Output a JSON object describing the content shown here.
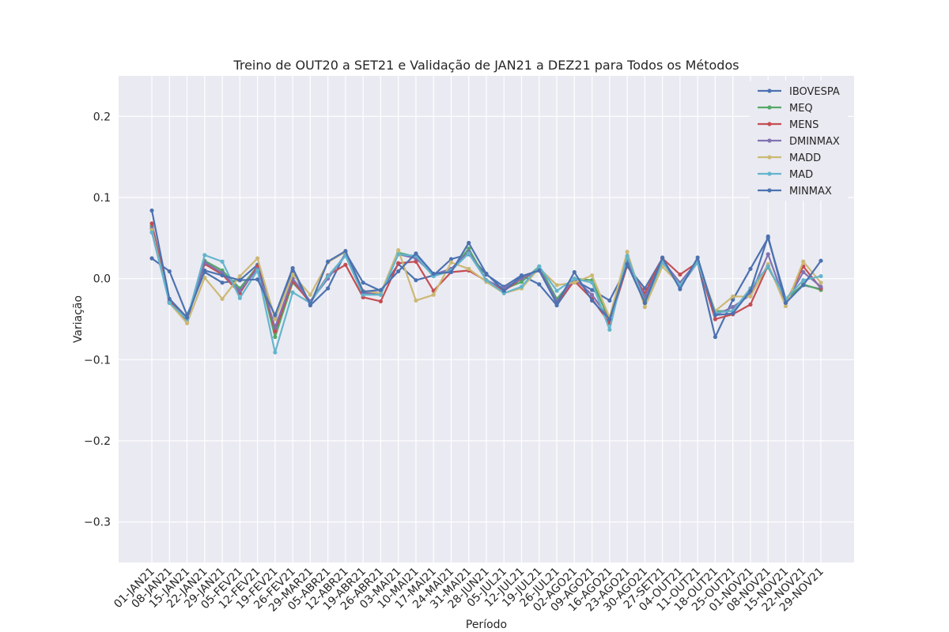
{
  "chart_data": {
    "type": "line",
    "title": "Treino de OUT20 a SET21 e Validação de JAN21 a DEZ21 para Todos os Métodos",
    "xlabel": "Período",
    "ylabel": "Variação",
    "ylim": [
      -0.35,
      0.25
    ],
    "yticks": [
      0.2,
      0.1,
      0.0,
      -0.1,
      -0.2,
      -0.3
    ],
    "ytick_labels": [
      "0.2",
      "0.1",
      "0.0",
      "−0.1",
      "−0.2",
      "−0.3"
    ],
    "grid": true,
    "legend_position": "top-right",
    "categories": [
      "01-JAN21",
      "08-JAN21",
      "15-JAN21",
      "22-JAN21",
      "29-JAN21",
      "05-FEV21",
      "12-FEV21",
      "19-FEV21",
      "26-FEV21",
      "29-MAR21",
      "05-ABR21",
      "12-ABR21",
      "19-ABR21",
      "26-ABR21",
      "03-MAI21",
      "10-MAI21",
      "17-MAI21",
      "24-MAI21",
      "31-MAI21",
      "28-JUN21",
      "05-JUL21",
      "12-JUL21",
      "19-JUL21",
      "26-JUL21",
      "02-AGO21",
      "09-AGO21",
      "16-AGO21",
      "23-AGO21",
      "30-AGO21",
      "27-SET21",
      "04-OUT21",
      "11-OUT21",
      "18-OUT21",
      "25-OUT21",
      "01-NOV21",
      "08-NOV21",
      "15-NOV21",
      "22-NOV21",
      "29-NOV21"
    ],
    "series": [
      {
        "name": "IBOVESPA",
        "color": "#4c72b0",
        "values": [
          0.025,
          0.009,
          -0.045,
          0.008,
          -0.005,
          -0.002,
          0.017,
          -0.048,
          0.01,
          -0.033,
          -0.012,
          0.032,
          -0.005,
          -0.015,
          0.018,
          -0.002,
          0.004,
          0.024,
          0.03,
          0.005,
          -0.01,
          0.004,
          -0.007,
          -0.033,
          -0.002,
          -0.014,
          -0.027,
          0.015,
          -0.012,
          0.025,
          -0.01,
          0.02,
          -0.072,
          -0.026,
          0.012,
          0.05,
          -0.025,
          -0.008,
          -0.013
        ]
      },
      {
        "name": "MEQ",
        "color": "#55a868",
        "values": [
          0.065,
          -0.028,
          -0.05,
          0.022,
          0.01,
          -0.012,
          0.015,
          -0.072,
          -0.005,
          -0.028,
          0.003,
          0.028,
          -0.018,
          -0.02,
          0.032,
          0.027,
          0.003,
          0.01,
          0.037,
          -0.002,
          -0.013,
          -0.004,
          0.015,
          -0.025,
          0.0,
          -0.002,
          -0.052,
          0.025,
          -0.025,
          0.02,
          -0.005,
          0.02,
          -0.04,
          -0.04,
          -0.012,
          0.014,
          -0.026,
          -0.007,
          -0.014
        ]
      },
      {
        "name": "MENS",
        "color": "#c44e52",
        "values": [
          0.068,
          -0.028,
          -0.05,
          0.018,
          0.005,
          -0.018,
          0.015,
          -0.065,
          -0.003,
          -0.03,
          0.004,
          0.017,
          -0.023,
          -0.028,
          0.019,
          0.021,
          -0.015,
          0.008,
          0.01,
          -0.003,
          -0.015,
          0.0,
          0.01,
          -0.03,
          -0.003,
          -0.025,
          -0.055,
          0.016,
          -0.018,
          0.025,
          0.005,
          0.02,
          -0.05,
          -0.044,
          -0.032,
          0.016,
          -0.03,
          0.015,
          -0.012
        ]
      },
      {
        "name": "DMINMAX",
        "color": "#8172b2",
        "values": [
          0.062,
          -0.03,
          -0.052,
          0.02,
          0.007,
          -0.015,
          0.012,
          -0.06,
          0.0,
          -0.028,
          0.0,
          0.03,
          -0.018,
          -0.018,
          0.03,
          0.025,
          0.005,
          0.012,
          0.033,
          -0.002,
          -0.012,
          0.0,
          0.012,
          -0.028,
          0.0,
          -0.02,
          -0.05,
          0.02,
          -0.022,
          0.022,
          -0.005,
          0.022,
          -0.045,
          -0.035,
          -0.02,
          0.03,
          -0.03,
          0.008,
          -0.01
        ]
      },
      {
        "name": "MADD",
        "color": "#ccb974",
        "values": [
          0.06,
          -0.03,
          -0.055,
          0.001,
          -0.025,
          0.003,
          0.025,
          -0.05,
          0.005,
          -0.02,
          0.02,
          0.033,
          -0.015,
          -0.018,
          0.035,
          -0.027,
          -0.02,
          0.02,
          0.012,
          -0.004,
          -0.018,
          -0.012,
          0.013,
          -0.008,
          -0.005,
          0.004,
          -0.048,
          0.033,
          -0.035,
          0.015,
          -0.008,
          0.02,
          -0.04,
          -0.022,
          -0.022,
          0.018,
          -0.034,
          0.021,
          -0.005
        ]
      },
      {
        "name": "MAD",
        "color": "#64b5cd",
        "values": [
          0.057,
          -0.03,
          -0.05,
          0.029,
          0.021,
          -0.024,
          0.01,
          -0.091,
          -0.017,
          -0.03,
          0.003,
          0.028,
          -0.02,
          -0.02,
          0.03,
          0.028,
          0.003,
          0.01,
          0.031,
          -0.002,
          -0.018,
          -0.01,
          0.015,
          -0.015,
          0.0,
          -0.005,
          -0.063,
          0.028,
          -0.03,
          0.02,
          -0.008,
          0.02,
          -0.042,
          -0.04,
          -0.012,
          0.015,
          -0.025,
          -0.002,
          0.003
        ]
      },
      {
        "name": "MINMAX",
        "color": "#4c72b0",
        "values": [
          0.084,
          -0.025,
          -0.048,
          0.01,
          0.004,
          -0.002,
          -0.001,
          -0.045,
          0.013,
          -0.032,
          0.021,
          0.034,
          -0.016,
          -0.014,
          0.009,
          0.031,
          0.006,
          0.008,
          0.044,
          0.006,
          -0.015,
          0.003,
          0.01,
          -0.031,
          0.008,
          -0.027,
          -0.05,
          0.018,
          -0.03,
          0.026,
          -0.013,
          0.026,
          -0.045,
          -0.043,
          -0.015,
          0.052,
          -0.03,
          -0.008,
          0.022
        ]
      }
    ]
  }
}
